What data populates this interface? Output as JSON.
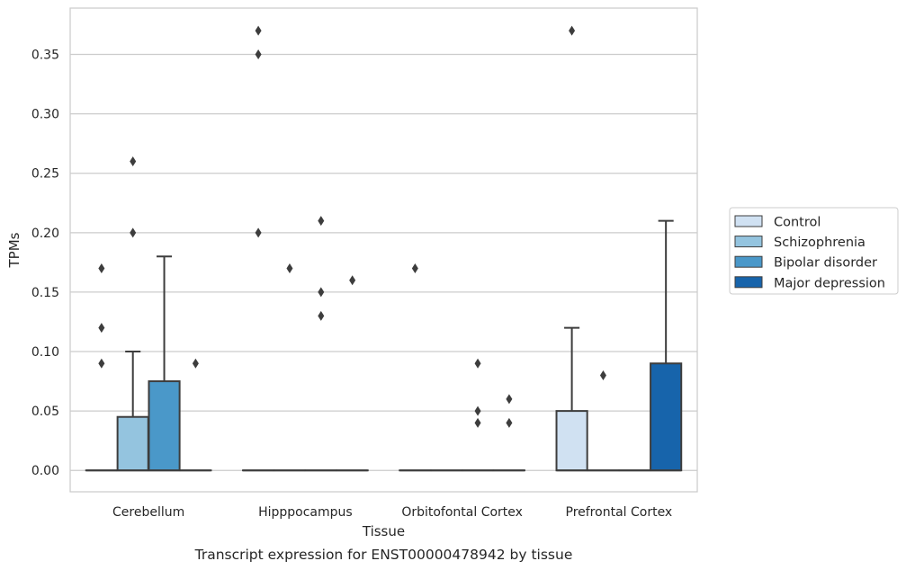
{
  "chart_data": {
    "type": "box",
    "caption": "Transcript expression for ENST00000478942 by tissue",
    "xlabel": "Tissue",
    "ylabel": "TPMs",
    "ylim": [
      -0.018,
      0.389
    ],
    "yticks": [
      0.0,
      0.05,
      0.1,
      0.15,
      0.2,
      0.25,
      0.3,
      0.35
    ],
    "ytick_labels": [
      "0.00",
      "0.05",
      "0.10",
      "0.15",
      "0.20",
      "0.25",
      "0.30",
      "0.35"
    ],
    "grid": true,
    "legend_position": "right",
    "categories": [
      "Cerebellum",
      "Hipppocampus",
      "Orbitofontal Cortex",
      "Prefrontal Cortex"
    ],
    "series": [
      {
        "name": "Control",
        "color": "#d0e1f2"
      },
      {
        "name": "Schizophrenia",
        "color": "#94c4df"
      },
      {
        "name": "Bipolar disorder",
        "color": "#4a98c9"
      },
      {
        "name": "Major depression",
        "color": "#1764ab"
      }
    ],
    "boxes": [
      {
        "category": 0,
        "series": 0,
        "q1": 0,
        "median": 0,
        "q3": 0,
        "whisker_low": 0,
        "whisker_high": 0,
        "outliers": [
          0.17,
          0.12,
          0.09
        ]
      },
      {
        "category": 0,
        "series": 1,
        "q1": 0,
        "median": 0,
        "q3": 0.045,
        "whisker_low": 0,
        "whisker_high": 0.1,
        "outliers": [
          0.26,
          0.2
        ]
      },
      {
        "category": 0,
        "series": 2,
        "q1": 0,
        "median": 0,
        "q3": 0.075,
        "whisker_low": 0,
        "whisker_high": 0.18,
        "outliers": []
      },
      {
        "category": 0,
        "series": 3,
        "q1": 0,
        "median": 0,
        "q3": 0,
        "whisker_low": 0,
        "whisker_high": 0,
        "outliers": [
          0.09
        ]
      },
      {
        "category": 1,
        "series": 0,
        "q1": 0,
        "median": 0,
        "q3": 0,
        "whisker_low": 0,
        "whisker_high": 0,
        "outliers": [
          0.37,
          0.35,
          0.2
        ]
      },
      {
        "category": 1,
        "series": 1,
        "q1": 0,
        "median": 0,
        "q3": 0,
        "whisker_low": 0,
        "whisker_high": 0,
        "outliers": [
          0.17
        ]
      },
      {
        "category": 1,
        "series": 2,
        "q1": 0,
        "median": 0,
        "q3": 0,
        "whisker_low": 0,
        "whisker_high": 0,
        "outliers": [
          0.21,
          0.15,
          0.13
        ]
      },
      {
        "category": 1,
        "series": 3,
        "q1": 0,
        "median": 0,
        "q3": 0,
        "whisker_low": 0,
        "whisker_high": 0,
        "outliers": [
          0.16
        ]
      },
      {
        "category": 2,
        "series": 0,
        "q1": 0,
        "median": 0,
        "q3": 0,
        "whisker_low": 0,
        "whisker_high": 0,
        "outliers": [
          0.17
        ]
      },
      {
        "category": 2,
        "series": 1,
        "q1": 0,
        "median": 0,
        "q3": 0,
        "whisker_low": 0,
        "whisker_high": 0,
        "outliers": []
      },
      {
        "category": 2,
        "series": 2,
        "q1": 0,
        "median": 0,
        "q3": 0,
        "whisker_low": 0,
        "whisker_high": 0,
        "outliers": [
          0.09,
          0.05,
          0.04
        ]
      },
      {
        "category": 2,
        "series": 3,
        "q1": 0,
        "median": 0,
        "q3": 0,
        "whisker_low": 0,
        "whisker_high": 0,
        "outliers": [
          0.06,
          0.04
        ]
      },
      {
        "category": 3,
        "series": 0,
        "q1": 0,
        "median": 0,
        "q3": 0.05,
        "whisker_low": 0,
        "whisker_high": 0.12,
        "outliers": [
          0.37
        ]
      },
      {
        "category": 3,
        "series": 1,
        "q1": 0,
        "median": 0,
        "q3": 0,
        "whisker_low": 0,
        "whisker_high": 0,
        "outliers": [
          0.08
        ]
      },
      {
        "category": 3,
        "series": 2,
        "q1": 0,
        "median": 0,
        "q3": 0,
        "whisker_low": 0,
        "whisker_high": 0,
        "outliers": []
      },
      {
        "category": 3,
        "series": 3,
        "q1": 0,
        "median": 0,
        "q3": 0.09,
        "whisker_low": 0,
        "whisker_high": 0.21,
        "outliers": []
      }
    ]
  }
}
